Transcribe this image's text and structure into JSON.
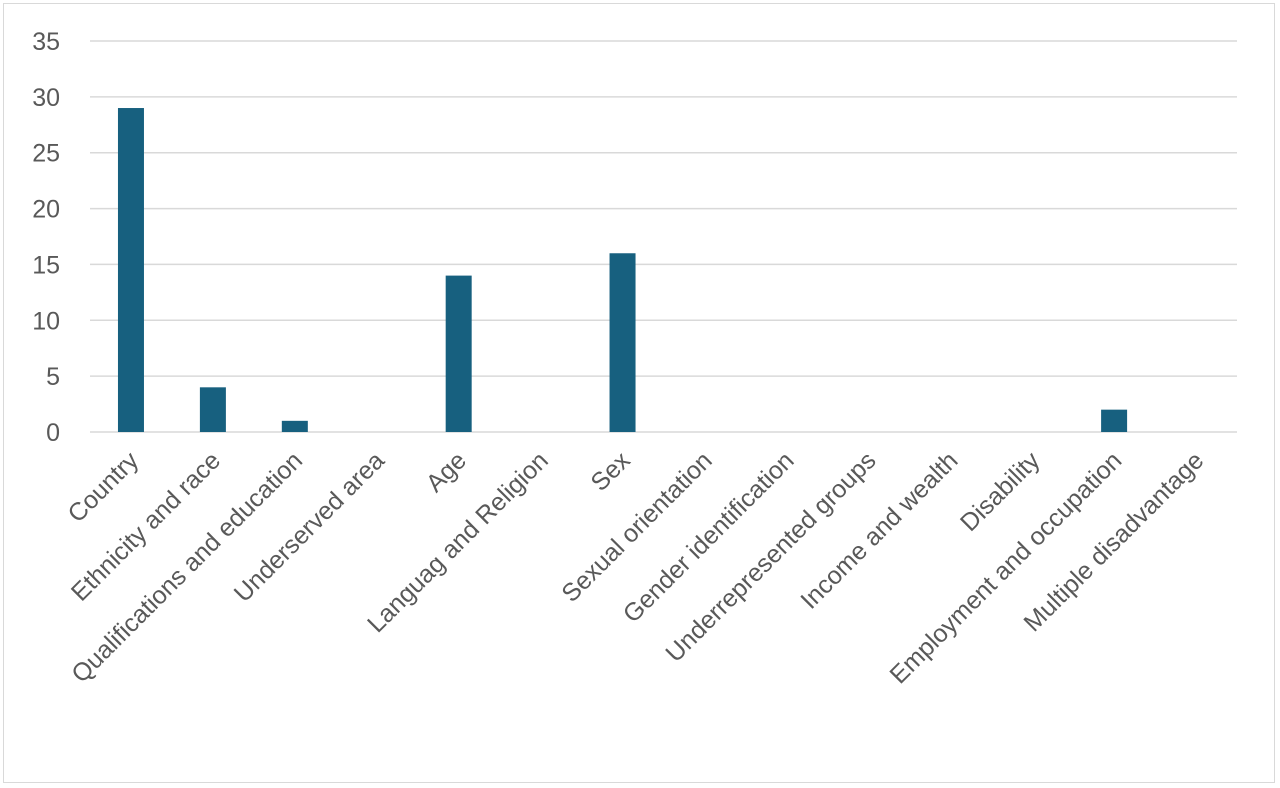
{
  "chart_data": {
    "type": "bar",
    "title": "",
    "xlabel": "",
    "ylabel": "",
    "categories": [
      "Country",
      "Ethnicity and race",
      "Qualifications and education",
      "Underserved area",
      "Age",
      "Languag and Religion",
      "Sex",
      "Sexual orientation",
      "Gender identification",
      "Underrepresented groups",
      "Income and wealth",
      "Disability",
      "Employment and occupation",
      "Multiple disadvantage"
    ],
    "values": [
      29,
      4,
      1,
      0,
      14,
      0,
      16,
      0,
      0,
      0,
      0,
      0,
      2,
      0
    ],
    "ylim": [
      0,
      35
    ],
    "yticks": [
      0,
      5,
      10,
      15,
      20,
      25,
      30,
      35
    ],
    "grid": true,
    "legend": "none",
    "bar_color": "#17607f",
    "gridline_color": "#d9d9d9",
    "label_color": "#595959"
  }
}
